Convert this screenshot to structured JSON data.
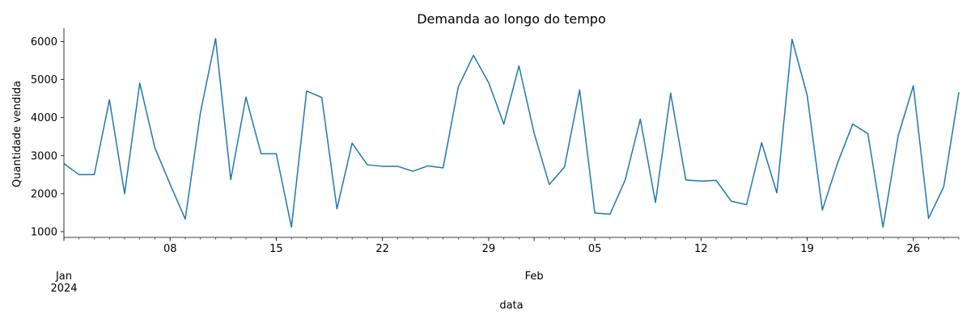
{
  "chart_data": {
    "type": "line",
    "title": "Demanda ao longo do tempo",
    "xlabel": "data",
    "ylabel": "Quantidade vendida",
    "x_start": "2024-01-01",
    "x_end": "2024-02-29",
    "ylim": [
      850,
      6350
    ],
    "grid": false,
    "y_ticks": [
      1000,
      2000,
      3000,
      4000,
      5000,
      6000
    ],
    "x_major_ticks": [
      {
        "date": "2024-01-08",
        "label": "08"
      },
      {
        "date": "2024-01-15",
        "label": "15"
      },
      {
        "date": "2024-01-22",
        "label": "22"
      },
      {
        "date": "2024-01-29",
        "label": "29"
      },
      {
        "date": "2024-02-05",
        "label": "05"
      },
      {
        "date": "2024-02-12",
        "label": "12"
      },
      {
        "date": "2024-02-19",
        "label": "19"
      },
      {
        "date": "2024-02-26",
        "label": "26"
      }
    ],
    "x_period_labels": [
      {
        "date": "2024-01-01",
        "label": "Jan",
        "sublabel": "2024"
      },
      {
        "date": "2024-02-01",
        "label": "Feb",
        "sublabel": ""
      }
    ],
    "series": [
      {
        "color": "#1f77b4",
        "x": [
          "2024-01-01",
          "2024-01-02",
          "2024-01-03",
          "2024-01-04",
          "2024-01-05",
          "2024-01-06",
          "2024-01-07",
          "2024-01-08",
          "2024-01-09",
          "2024-01-10",
          "2024-01-11",
          "2024-01-12",
          "2024-01-13",
          "2024-01-14",
          "2024-01-15",
          "2024-01-16",
          "2024-01-17",
          "2024-01-18",
          "2024-01-19",
          "2024-01-20",
          "2024-01-21",
          "2024-01-22",
          "2024-01-23",
          "2024-01-24",
          "2024-01-25",
          "2024-01-26",
          "2024-01-27",
          "2024-01-28",
          "2024-01-29",
          "2024-01-30",
          "2024-01-31",
          "2024-02-01",
          "2024-02-02",
          "2024-02-03",
          "2024-02-04",
          "2024-02-05",
          "2024-02-06",
          "2024-02-07",
          "2024-02-08",
          "2024-02-09",
          "2024-02-10",
          "2024-02-11",
          "2024-02-12",
          "2024-02-13",
          "2024-02-14",
          "2024-02-15",
          "2024-02-16",
          "2024-02-17",
          "2024-02-18",
          "2024-02-19",
          "2024-02-20",
          "2024-02-21",
          "2024-02-22",
          "2024-02-23",
          "2024-02-24",
          "2024-02-25",
          "2024-02-26",
          "2024-02-27",
          "2024-02-28",
          "2024-02-29"
        ],
        "values": [
          2790,
          2500,
          2500,
          4470,
          2000,
          4910,
          3200,
          2250,
          1330,
          4130,
          6080,
          2370,
          4540,
          3050,
          3050,
          1120,
          4700,
          4530,
          1600,
          3330,
          2760,
          2720,
          2720,
          2590,
          2730,
          2680,
          4810,
          5640,
          4920,
          3830,
          5360,
          3590,
          2240,
          2700,
          4730,
          1490,
          1460,
          2360,
          3960,
          1770,
          4640,
          2360,
          2330,
          2350,
          1800,
          1710,
          3340,
          2020,
          6060,
          4590,
          1570,
          2800,
          3830,
          3580,
          1120,
          3520,
          4840,
          1350,
          2180,
          4670
        ]
      }
    ]
  }
}
